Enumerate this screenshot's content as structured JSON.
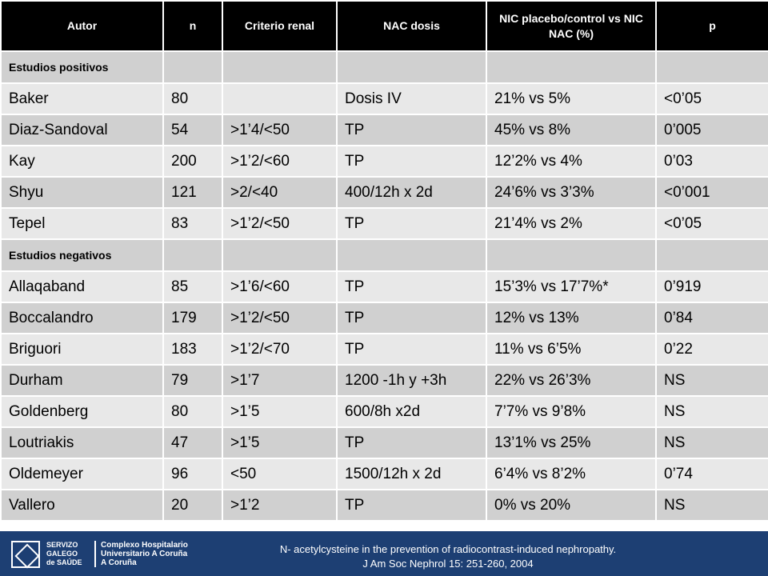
{
  "table": {
    "headers": [
      "Autor",
      "n",
      "Criterio renal",
      "NAC dosis",
      "NIC placebo/control vs NIC NAC (%)",
      "p"
    ],
    "sections": [
      {
        "label": "Estudios  positivos",
        "rows": [
          [
            "Baker",
            "80",
            "",
            "Dosis IV",
            "21% vs 5%",
            "<0’05"
          ],
          [
            "Diaz-Sandoval",
            "54",
            ">1’4/<50",
            "TP",
            "45% vs 8%",
            "0’005"
          ],
          [
            "Kay",
            "200",
            ">1’2/<60",
            "TP",
            "12’2% vs 4%",
            "0’03"
          ],
          [
            "Shyu",
            "121",
            ">2/<40",
            "400/12h x 2d",
            "24’6% vs 3’3%",
            "<0’001"
          ],
          [
            "Tepel",
            "83",
            ">1’2/<50",
            "TP",
            "21’4% vs 2%",
            "<0’05"
          ]
        ]
      },
      {
        "label": "Estudios  negativos",
        "rows": [
          [
            "Allaqaband",
            "85",
            ">1’6/<60",
            "TP",
            "15’3% vs 17’7%*",
            "0’919"
          ],
          [
            "Boccalandro",
            "179",
            ">1’2/<50",
            "TP",
            "12% vs 13%",
            "0’84"
          ],
          [
            "Briguori",
            "183",
            ">1’2/<70",
            "TP",
            "11% vs 6’5%",
            "0’22"
          ],
          [
            "Durham",
            "79",
            ">1’7",
            "1200 -1h y +3h",
            "22% vs 26’3%",
            "NS"
          ],
          [
            "Goldenberg",
            "80",
            ">1’5",
            "600/8h x2d",
            " 7’7% vs 9’8%",
            "NS"
          ],
          [
            "Loutriakis",
            "47",
            ">1’5",
            "TP",
            "13’1% vs 25%",
            "NS"
          ],
          [
            "Oldemeyer",
            "96",
            "<50",
            "1500/12h x 2d",
            "6’4% vs 8’2%",
            "0’74"
          ],
          [
            "Vallero",
            "20",
            ">1’2",
            "TP",
            "0% vs 20%",
            "NS"
          ]
        ]
      }
    ]
  },
  "footer": {
    "logo_left_lines": [
      "SERVIZO",
      "GALEGO",
      "de SAÚDE"
    ],
    "logo_right_lines": [
      "Complexo Hospitalario",
      "Universitario A Coruña",
      "A Coruña"
    ],
    "citation_line1": "N- acetylcysteine in the prevention of radiocontrast-induced nephropathy.",
    "citation_line2": "J Am Soc Nephrol 15: 251-260, 2004",
    "background_color": "#1d3f73"
  }
}
